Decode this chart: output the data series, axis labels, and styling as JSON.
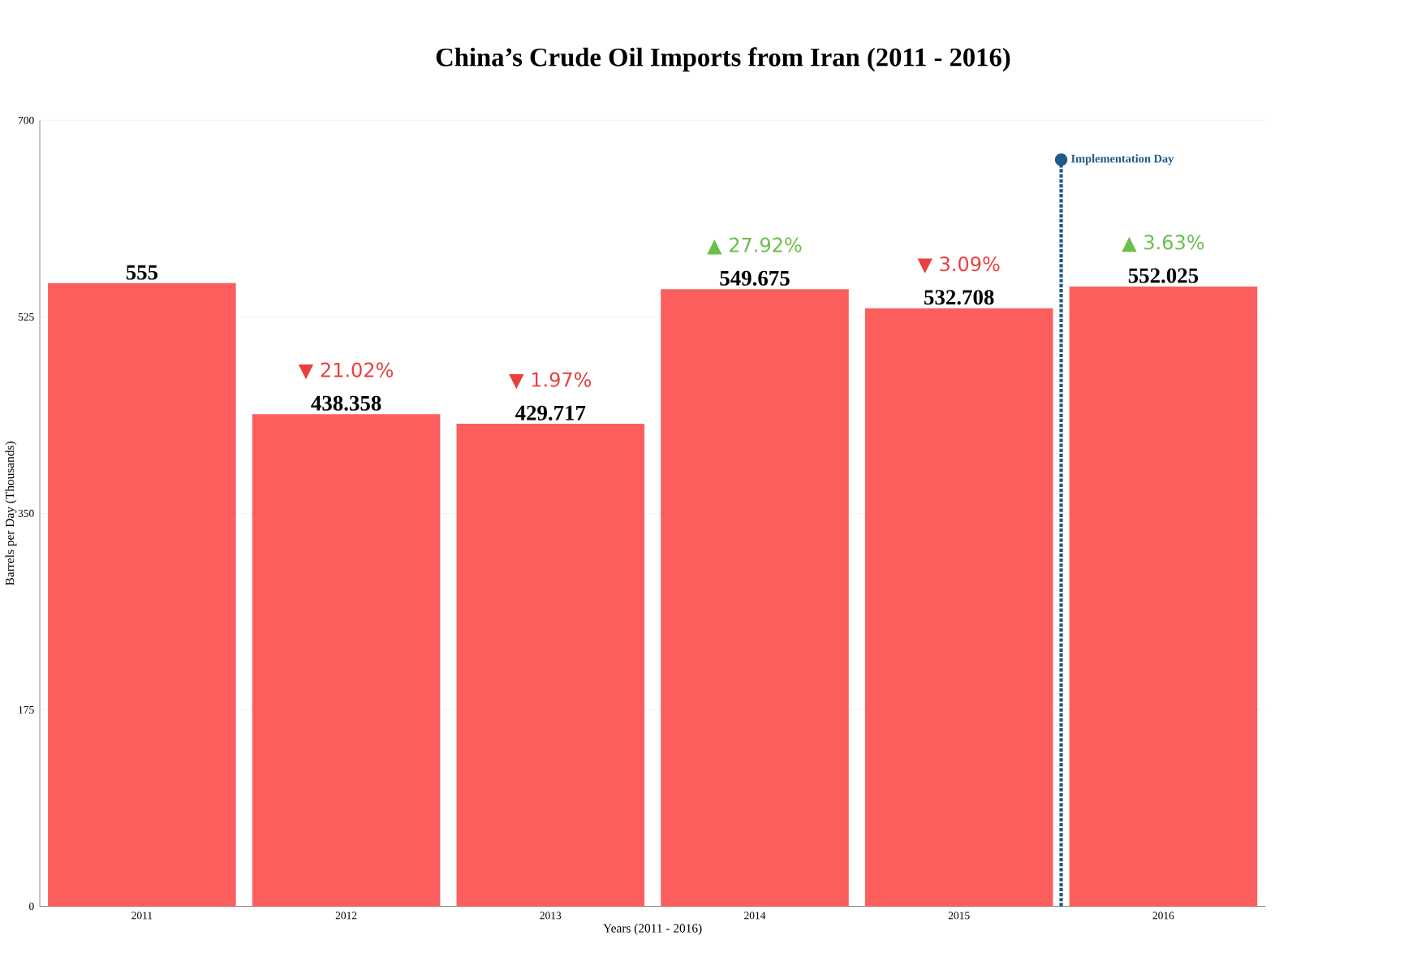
{
  "chart_data": {
    "type": "bar",
    "title": "China’s Crude Oil Imports from Iran (2011 - 2016)",
    "xlabel": "Years (2011 - 2016)",
    "ylabel": "Barrels per Day (Thousands)",
    "categories": [
      "2011",
      "2012",
      "2013",
      "2014",
      "2015",
      "2016"
    ],
    "values": [
      555,
      438.358,
      429.717,
      549.675,
      532.708,
      552.025
    ],
    "color": "#fc5e5e",
    "data_labels": true,
    "grid": "y",
    "ylim": [
      0,
      700
    ],
    "yticks": [
      0,
      175,
      350,
      525,
      700
    ],
    "annotations": [
      {
        "text": "▼ 21.02%",
        "x": "2012",
        "y": 438.358
      },
      {
        "text": "▼ 1.97%",
        "x": "2013",
        "y": 429.717
      },
      {
        "text": "▲ 27.92%",
        "x": "2014",
        "y": 549.675
      },
      {
        "text": "▼ 3.09%",
        "x": "2015",
        "y": 532.708
      },
      {
        "text": "▲ 3.63%",
        "x": "2016",
        "y": 552.025
      }
    ],
    "ref_lines": [
      {
        "axis": "x",
        "value": "2016",
        "label": "Implementation Day",
        "color": "#1f5a8a",
        "line_style": "dotted"
      }
    ]
  }
}
